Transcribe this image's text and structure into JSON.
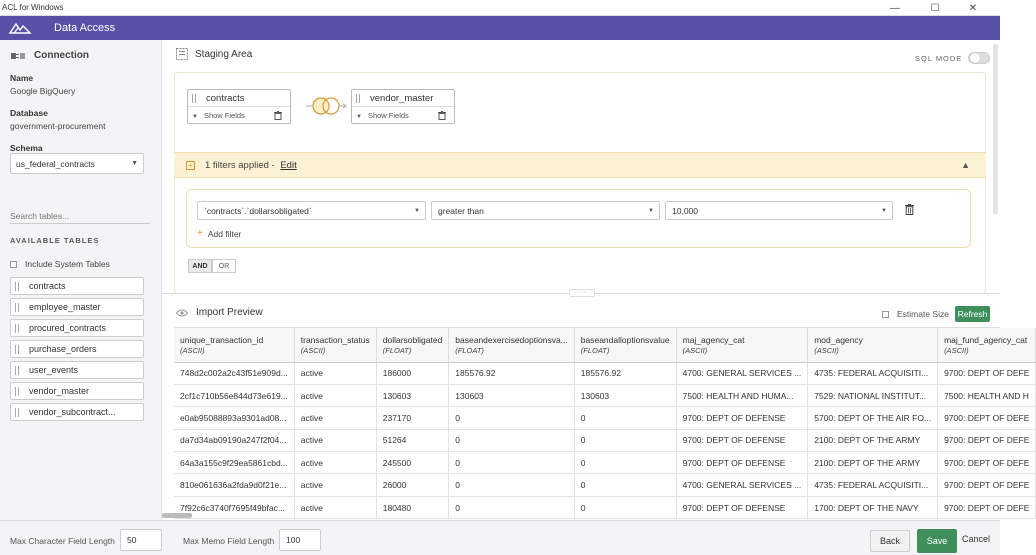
{
  "window": {
    "title": "ACL for Windows",
    "minimize": "—",
    "maximize": "☐",
    "close": "✕"
  },
  "header": {
    "title": "Data Access"
  },
  "sidebar": {
    "connection_label": "Connection",
    "name_label": "Name",
    "name_value": "Google BigQuery",
    "database_label": "Database",
    "database_value": "government-procurement",
    "schema_label": "Schema",
    "schema_value": "us_federal_contracts",
    "search_placeholder": "Search tables...",
    "available_label": "AVAILABLE TABLES",
    "include_system": "Include System Tables",
    "tables": [
      "contracts",
      "employee_master",
      "procured_contracts",
      "purchase_orders",
      "user_events",
      "vendor_master",
      "vendor_subcontract..."
    ]
  },
  "staging": {
    "title": "Staging Area",
    "sql_mode": "SQL MODE",
    "left_table": "contracts",
    "right_table": "vendor_master",
    "show_fields": "Show Fields"
  },
  "filter": {
    "summary": "1 filters applied - ",
    "edit": "Edit",
    "field": "`contracts`.`dollarsobligated`",
    "operator": "greater than",
    "value": "10,000",
    "add_filter": "Add filter",
    "and": "AND",
    "or": "OR"
  },
  "preview": {
    "title": "Import Preview",
    "estimate_size": "Estimate Size",
    "refresh": "Refresh",
    "columns": [
      {
        "name": "unique_transaction_id",
        "type": "(ASCII)"
      },
      {
        "name": "transaction_status",
        "type": "(ASCII)"
      },
      {
        "name": "dollarsobligated",
        "type": "(FLOAT)"
      },
      {
        "name": "baseandexercisedoptionsva...",
        "type": "(FLOAT)"
      },
      {
        "name": "baseandalloptionsvalue",
        "type": "(FLOAT)"
      },
      {
        "name": "maj_agency_cat",
        "type": "(ASCII)"
      },
      {
        "name": "mod_agency",
        "type": "(ASCII)"
      },
      {
        "name": "maj_fund_agency_cat",
        "type": "(ASCII)"
      }
    ],
    "rows": [
      [
        "748d2c002a2c43f51e909d...",
        "active",
        "186000",
        "185576.92",
        "185576.92",
        "4700: GENERAL SERVICES ...",
        "4735: FEDERAL ACQUISITI...",
        "9700: DEPT OF DEFE"
      ],
      [
        "2cf1c710b56e844d73e619...",
        "active",
        "130603",
        "130603",
        "130603",
        "7500: HEALTH AND HUMA...",
        "7529: NATIONAL INSTITUT...",
        "7500: HEALTH AND H"
      ],
      [
        "e0ab95088893a9301ad08...",
        "active",
        "237170",
        "0",
        "0",
        "9700: DEPT OF DEFENSE",
        "5700: DEPT OF THE AIR FO...",
        "9700: DEPT OF DEFE"
      ],
      [
        "da7d34ab09190a247f2f04...",
        "active",
        "51264",
        "0",
        "0",
        "9700: DEPT OF DEFENSE",
        "2100: DEPT OF THE ARMY",
        "9700: DEPT OF DEFE"
      ],
      [
        "64a3a155c9f29ea5861cbd...",
        "active",
        "245500",
        "0",
        "0",
        "9700: DEPT OF DEFENSE",
        "2100: DEPT OF THE ARMY",
        "9700: DEPT OF DEFE"
      ],
      [
        "810e061636a2fda9d0f21e...",
        "active",
        "26000",
        "0",
        "0",
        "4700: GENERAL SERVICES ...",
        "4735: FEDERAL ACQUISITI...",
        "9700: DEPT OF DEFE"
      ],
      [
        "7f92c6c3740f7695f49bfac...",
        "active",
        "180480",
        "0",
        "0",
        "9700: DEPT OF DEFENSE",
        "1700: DEPT OF THE NAVY",
        "9700: DEPT OF DEFE"
      ]
    ]
  },
  "footer": {
    "max_char_label": "Max Character Field Length",
    "max_char_value": "50",
    "max_memo_label": "Max Memo Field Length",
    "max_memo_value": "100",
    "back": "Back",
    "save": "Save",
    "cancel": "Cancel"
  },
  "colors": {
    "header": "#5750a6",
    "accent_green": "#3f8f5a",
    "filter_bg": "#fdf1d4"
  }
}
